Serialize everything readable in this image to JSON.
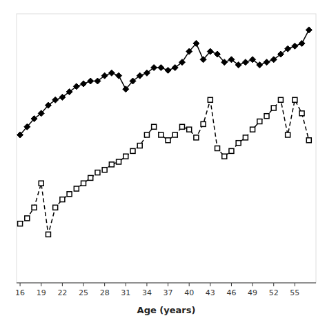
{
  "chart_data": {
    "type": "line",
    "xlabel": "Age (years)",
    "x": [
      16,
      17,
      18,
      19,
      20,
      21,
      22,
      23,
      24,
      25,
      26,
      27,
      28,
      29,
      30,
      31,
      32,
      33,
      34,
      35,
      36,
      37,
      38,
      39,
      40,
      41,
      42,
      43,
      44,
      45,
      46,
      47,
      48,
      49,
      50,
      51,
      52,
      53,
      54,
      55,
      56,
      57
    ],
    "series": [
      {
        "values": [
          55,
          58,
          61,
          63,
          66,
          68,
          69,
          71,
          73,
          74,
          75,
          75,
          77,
          78,
          77,
          72,
          75,
          77,
          78,
          80,
          80,
          79,
          80,
          82,
          86,
          89,
          83,
          86,
          85,
          82,
          83,
          81,
          82,
          83,
          81,
          82,
          83,
          85,
          87,
          88,
          89,
          94
        ],
        "color": "#000000",
        "marker": "diamond",
        "line_style": "solid"
      },
      {
        "values": [
          22,
          24,
          28,
          37,
          18,
          28,
          31,
          33,
          35,
          37,
          39,
          41,
          42,
          44,
          45,
          47,
          49,
          51,
          55,
          58,
          55,
          53,
          55,
          58,
          57,
          54,
          59,
          68,
          50,
          47,
          49,
          52,
          54,
          57,
          60,
          62,
          65,
          68,
          55,
          68,
          63,
          53
        ],
        "color": "#000000",
        "marker": "square",
        "line_style": "dashed"
      }
    ],
    "xlim": [
      15.5,
      58
    ],
    "ylim": [
      0,
      100
    ],
    "xticks": [
      16,
      19,
      22,
      25,
      28,
      31,
      34,
      37,
      40,
      43,
      46,
      49,
      52,
      55
    ],
    "tick_labels": "x",
    "grid": false
  }
}
